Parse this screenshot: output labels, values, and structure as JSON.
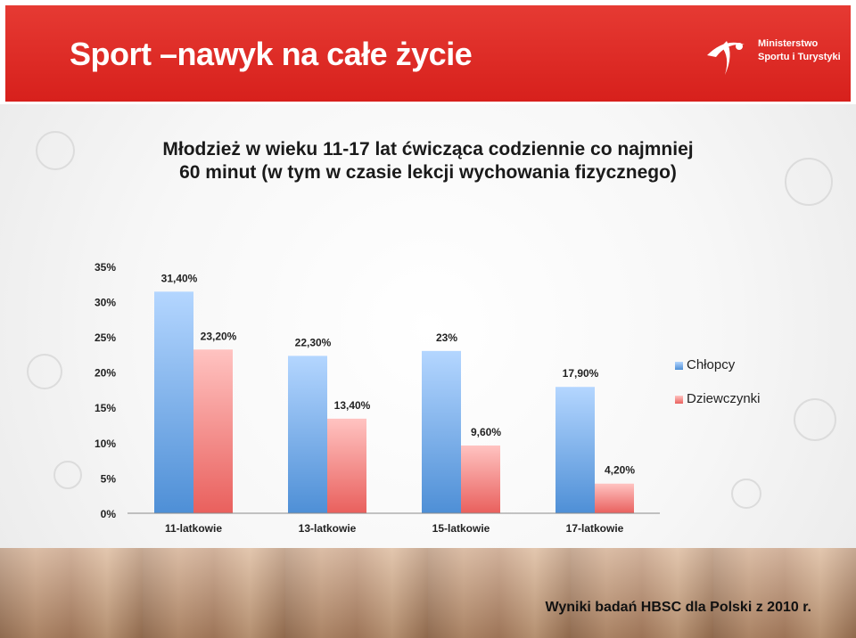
{
  "header": {
    "title": "Sport –nawyk na całe życie",
    "logo_line1": "Ministerstwo",
    "logo_line2": "Sportu i Turystyki"
  },
  "footer": {
    "source": "Wyniki badań HBSC dla Polski z 2010 r."
  },
  "colors": {
    "header": "#d7201c",
    "boys": "#5b9bdf",
    "girls": "#f07c7c"
  },
  "chart_data": {
    "type": "bar",
    "title_line1": "Młodzież w wieku 11-17 lat ćwicząca codziennie co najmniej",
    "title_line2": "60 minut (w tym w czasie lekcji wychowania fizycznego)",
    "categories": [
      "11-latkowie",
      "13-latkowie",
      "15-latkowie",
      "17-latkowie"
    ],
    "series": [
      {
        "name": "Chłopcy",
        "values": [
          31.4,
          22.3,
          23.0,
          17.9
        ],
        "labels": [
          "31,40%",
          "22,30%",
          "23%",
          "17,90%"
        ]
      },
      {
        "name": "Dziewczynki",
        "values": [
          23.2,
          13.4,
          9.6,
          4.2
        ],
        "labels": [
          "23,20%",
          "13,40%",
          "9,60%",
          "4,20%"
        ]
      }
    ],
    "yticks": [
      "0%",
      "5%",
      "10%",
      "15%",
      "20%",
      "25%",
      "30%",
      "35%"
    ],
    "ylim": [
      0,
      35
    ],
    "legend": "right",
    "grid": false
  }
}
